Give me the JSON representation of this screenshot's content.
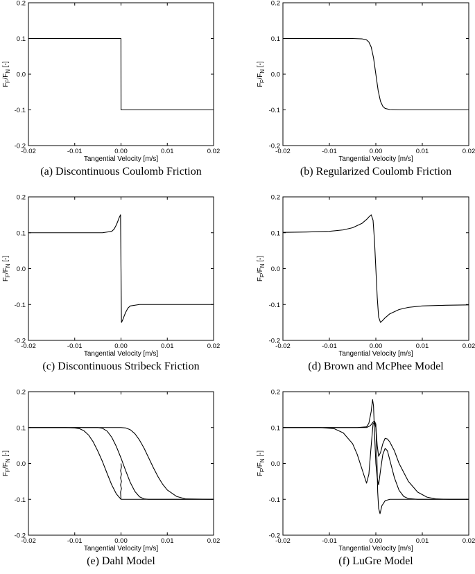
{
  "figure": {
    "ylabel_main": "F",
    "ylabel_sub1": "F",
    "ylabel_slash": "/F",
    "ylabel_sub2": "N",
    "ylabel_unit": " [-]"
  },
  "chart_data": [
    {
      "type": "line",
      "caption": "(a) Discontinuous Coulomb Friction",
      "xlabel": "Tangential Velocity [m/s]",
      "ylabel": "F_F/F_N [-]",
      "xlim": [
        -0.02,
        0.02
      ],
      "ylim": [
        -0.2,
        0.2
      ],
      "xticks": [
        "-0.02",
        "-0.01",
        "0.00",
        "0.01",
        "0.02"
      ],
      "yticks": [
        "0.2",
        "0.1",
        "0.0",
        "-0.1",
        "-0.2"
      ],
      "grid": false,
      "series": [
        {
          "x": [
            -0.02,
            -1e-05,
            1e-05,
            0.02
          ],
          "y": [
            0.1,
            0.1,
            -0.1,
            -0.1
          ]
        }
      ]
    },
    {
      "type": "line",
      "caption": "(b) Regularized Coulomb Friction",
      "xlabel": "Tangential Velocity [m/s]",
      "ylabel": "F_F/F_N [-]",
      "xlim": [
        -0.02,
        0.02
      ],
      "ylim": [
        -0.2,
        0.2
      ],
      "xticks": [
        "-0.02",
        "-0.01",
        "0.00",
        "0.01",
        "0.02"
      ],
      "yticks": [
        "0.2",
        "0.1",
        "0.0",
        "-0.1",
        "-0.2"
      ],
      "grid": false,
      "series": [
        {
          "x": [
            -0.02,
            -0.01,
            -0.005,
            -0.003,
            -0.002,
            -0.0015,
            -0.001,
            -0.0005,
            0.0,
            0.0005,
            0.001,
            0.0015,
            0.002,
            0.003,
            0.005,
            0.01,
            0.02
          ],
          "y": [
            0.1,
            0.1,
            0.1,
            0.099,
            0.096,
            0.09,
            0.076,
            0.046,
            0.0,
            -0.046,
            -0.076,
            -0.09,
            -0.096,
            -0.099,
            -0.1,
            -0.1,
            -0.1
          ]
        }
      ]
    },
    {
      "type": "line",
      "caption": "(c) Discontinuous Stribeck Friction",
      "xlabel": "Tangential Velocity [m/s]",
      "ylabel": "F_F/F_N [-]",
      "xlim": [
        -0.02,
        0.02
      ],
      "ylim": [
        -0.2,
        0.2
      ],
      "xticks": [
        "-0.02",
        "-0.01",
        "0.00",
        "0.01",
        "0.02"
      ],
      "yticks": [
        "0.2",
        "0.1",
        "0.0",
        "-0.1",
        "-0.2"
      ],
      "grid": false,
      "series": [
        {
          "x": [
            -0.02,
            -0.004,
            -0.002,
            -0.0015,
            -0.001,
            -0.0006,
            -0.0003,
            -0.0001,
            0.0,
            0.0001,
            0.0003,
            0.0006,
            0.001,
            0.0015,
            0.002,
            0.004,
            0.02
          ],
          "y": [
            0.1,
            0.1,
            0.104,
            0.11,
            0.122,
            0.135,
            0.145,
            0.15,
            0.0,
            -0.15,
            -0.145,
            -0.135,
            -0.122,
            -0.11,
            -0.104,
            -0.1,
            -0.1
          ]
        }
      ]
    },
    {
      "type": "line",
      "caption": "(d) Brown and McPhee Model",
      "xlabel": "Tangential Velocity [m/s]",
      "ylabel": "F_F/F_N [-]",
      "xlim": [
        -0.02,
        0.02
      ],
      "ylim": [
        -0.2,
        0.2
      ],
      "xticks": [
        "-0.02",
        "-0.01",
        "0.00",
        "0.01",
        "0.02"
      ],
      "yticks": [
        "0.2",
        "0.1",
        "0.0",
        "-0.1",
        "-0.2"
      ],
      "grid": false,
      "series": [
        {
          "x": [
            -0.02,
            -0.015,
            -0.01,
            -0.007,
            -0.005,
            -0.003,
            -0.002,
            -0.0015,
            -0.001,
            -0.0006,
            -0.0003,
            0.0,
            0.0003,
            0.0006,
            0.001,
            0.0015,
            0.002,
            0.003,
            0.005,
            0.007,
            0.01,
            0.015,
            0.02
          ],
          "y": [
            0.101,
            0.102,
            0.104,
            0.108,
            0.114,
            0.126,
            0.137,
            0.144,
            0.15,
            0.135,
            0.08,
            0.0,
            -0.08,
            -0.135,
            -0.15,
            -0.144,
            -0.137,
            -0.126,
            -0.114,
            -0.108,
            -0.104,
            -0.102,
            -0.101
          ]
        }
      ]
    },
    {
      "type": "line",
      "caption": "(e) Dahl Model",
      "xlabel": "Tangential Velocity [m/s]",
      "ylabel": "F_F/F_N [-]",
      "xlim": [
        -0.02,
        0.02
      ],
      "ylim": [
        -0.2,
        0.2
      ],
      "xticks": [
        "-0.02",
        "-0.01",
        "0.00",
        "0.01",
        "0.02"
      ],
      "yticks": [
        "0.2",
        "0.1",
        "0.0",
        "-0.1",
        "-0.2"
      ],
      "grid": false,
      "series": [
        {
          "x": [
            -0.02,
            -0.012,
            -0.01,
            -0.009,
            -0.008,
            -0.007,
            -0.006,
            -0.005,
            -0.004,
            -0.003,
            -0.002,
            -0.001,
            0.0,
            0.005,
            0.02
          ],
          "y": [
            0.1,
            0.1,
            0.099,
            0.097,
            0.091,
            0.079,
            0.06,
            0.034,
            0.005,
            -0.028,
            -0.06,
            -0.085,
            -0.1,
            -0.1,
            -0.1
          ]
        },
        {
          "x": [
            -0.02,
            -0.006,
            -0.005,
            -0.004,
            -0.003,
            -0.002,
            -0.001,
            0.0,
            0.001,
            0.002,
            0.003,
            0.004,
            0.005,
            0.006,
            0.02
          ],
          "y": [
            0.1,
            0.1,
            0.1,
            0.098,
            0.09,
            0.073,
            0.047,
            0.015,
            -0.02,
            -0.053,
            -0.078,
            -0.093,
            -0.099,
            -0.1,
            -0.1
          ]
        },
        {
          "x": [
            -0.02,
            -0.001,
            0.0,
            0.001,
            0.002,
            0.003,
            0.004,
            0.005,
            0.006,
            0.007,
            0.008,
            0.009,
            0.01,
            0.012,
            0.014,
            0.02
          ],
          "y": [
            0.1,
            0.1,
            0.1,
            0.099,
            0.094,
            0.083,
            0.065,
            0.042,
            0.015,
            -0.012,
            -0.037,
            -0.058,
            -0.074,
            -0.092,
            -0.099,
            -0.1
          ]
        },
        {
          "x": [
            0.0,
            0.0001,
            -0.0001,
            0.0001,
            -0.0001,
            0.0001,
            -0.0001,
            0.0001,
            -0.0001,
            0.0
          ],
          "y": [
            0.0,
            -0.01,
            -0.02,
            -0.03,
            -0.04,
            -0.05,
            -0.06,
            -0.07,
            -0.08,
            -0.1
          ]
        }
      ]
    },
    {
      "type": "line",
      "caption": "(f) LuGre Model",
      "xlabel": "Tangential Velocity [m/s]",
      "ylabel": "F_F/F_N [-]",
      "xlim": [
        -0.02,
        0.02
      ],
      "ylim": [
        -0.2,
        0.2
      ],
      "xticks": [
        "-0.02",
        "-0.01",
        "0.00",
        "0.01",
        "0.02"
      ],
      "yticks": [
        "0.2",
        "0.1",
        "0.0",
        "-0.1",
        "-0.2"
      ],
      "grid": false,
      "series": [
        {
          "x": [
            -0.02,
            -0.012,
            -0.009,
            -0.007,
            -0.005,
            -0.004,
            -0.003,
            -0.0025,
            -0.002,
            -0.0015,
            -0.001,
            -0.0006,
            -0.0003,
            0.0,
            0.0003,
            0.0006,
            0.001,
            0.0015,
            0.002,
            0.0025,
            0.003,
            0.004,
            0.005,
            0.007,
            0.009,
            0.011,
            0.013,
            0.016,
            0.02
          ],
          "y": [
            0.1,
            0.1,
            0.097,
            0.085,
            0.055,
            0.025,
            -0.015,
            -0.035,
            -0.055,
            -0.03,
            0.05,
            0.11,
            0.115,
            0.1,
            0.05,
            0.02,
            0.03,
            0.055,
            0.07,
            0.068,
            0.06,
            0.035,
            0.0,
            -0.05,
            -0.08,
            -0.094,
            -0.099,
            -0.1,
            -0.1
          ]
        },
        {
          "x": [
            -0.02,
            -0.004,
            -0.002,
            -0.0015,
            -0.001,
            -0.0007,
            -0.0005,
            -0.0003,
            0.0,
            0.0003,
            0.0006,
            0.001,
            0.0015,
            0.002,
            0.0025,
            0.003,
            0.004,
            0.005,
            0.006,
            0.007,
            0.009,
            0.02
          ],
          "y": [
            0.1,
            0.1,
            0.102,
            0.112,
            0.145,
            0.178,
            0.16,
            0.09,
            0.0,
            -0.04,
            -0.06,
            -0.02,
            0.025,
            0.042,
            0.035,
            0.01,
            -0.04,
            -0.075,
            -0.092,
            -0.098,
            -0.1,
            -0.1
          ]
        },
        {
          "x": [
            -0.02,
            -0.002,
            -0.0012,
            -0.0006,
            -0.0003,
            0.0,
            0.0002,
            0.0004,
            0.0006,
            0.0009,
            0.0013,
            0.002,
            0.003,
            0.02
          ],
          "y": [
            0.1,
            0.1,
            0.105,
            0.115,
            0.118,
            0.11,
            0.03,
            -0.08,
            -0.125,
            -0.14,
            -0.118,
            -0.104,
            -0.1,
            -0.1
          ]
        }
      ]
    }
  ]
}
